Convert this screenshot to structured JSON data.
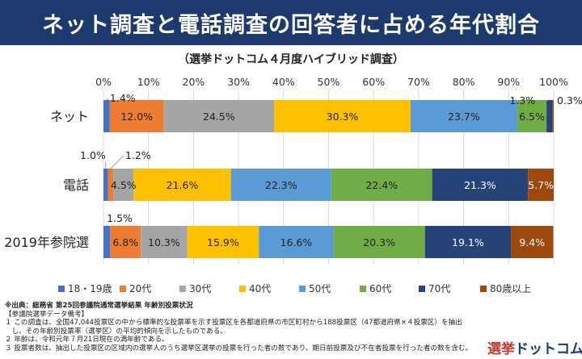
{
  "header": {
    "title": "ネット調査と電話調査の回答者に占める年代割合"
  },
  "subtitle": "（選挙ドットコム４月度ハイブリッド調査）",
  "colors": [
    "#4472c4",
    "#ed7d31",
    "#a5a5a5",
    "#ffc000",
    "#5b9bd5",
    "#70ad47",
    "#264478",
    "#9e480e"
  ],
  "chart_data": {
    "type": "bar",
    "orientation": "horizontal",
    "stacked": "percent",
    "categories": [
      "ネット",
      "電話",
      "2019年参院選"
    ],
    "xlim": [
      0,
      100
    ],
    "x_ticks": [
      "0%",
      "10%",
      "20%",
      "30%",
      "40%",
      "50%",
      "60%",
      "70%",
      "80%",
      "90%",
      "100%"
    ],
    "grid": true,
    "legend_position": "bottom",
    "series": [
      {
        "name": "18・19歳",
        "values": [
          1.4,
          1.0,
          1.5
        ],
        "labels": [
          "1.4%",
          "1.0%",
          "1.5%"
        ]
      },
      {
        "name": "20代",
        "values": [
          12.0,
          1.2,
          6.8
        ],
        "labels": [
          "12.0%",
          "1.2%",
          "6.8%"
        ]
      },
      {
        "name": "30代",
        "values": [
          24.5,
          4.5,
          10.3
        ],
        "labels": [
          "24.5%",
          "4.5%",
          "10.3%"
        ]
      },
      {
        "name": "40代",
        "values": [
          30.3,
          21.6,
          15.9
        ],
        "labels": [
          "30.3%",
          "21.6%",
          "15.9%"
        ]
      },
      {
        "name": "50代",
        "values": [
          23.7,
          22.3,
          16.6
        ],
        "labels": [
          "23.7%",
          "22.3%",
          "16.6%"
        ]
      },
      {
        "name": "60代",
        "values": [
          6.5,
          22.4,
          20.3
        ],
        "labels": [
          "6.5%",
          "22.4%",
          "20.3%"
        ]
      },
      {
        "name": "70代",
        "values": [
          1.3,
          21.3,
          19.1
        ],
        "labels": [
          "1.3%",
          "21.3%",
          "19.1%"
        ]
      },
      {
        "name": "80歳以上",
        "values": [
          0.3,
          5.7,
          9.4
        ],
        "labels": [
          "0.3%",
          "5.7%",
          "9.4%"
        ]
      }
    ]
  },
  "footnotes": {
    "source": "※出典：総務省 第25回参議院通常選挙結果 年齢別投票状況",
    "section_title": "【参議院選挙データ備考】",
    "note1": "１ この調査は、全国47,044投票区の中から標準的な投票率を示す投票区を各都道府県の市区町村から188投票区（47都道府県×４投票区）を抽出",
    "note1b": "　し、その年齢別投票率（選挙区）の平均的傾向を示したものである。",
    "note2": "２ 年齢は、令和元年７月21日現在の満年齢である。",
    "note3": "３ 投票者数は、抽出した投票区の区域内の選挙人のうち選挙区選挙の投票を行った者の数であり、期日前投票及び不在者投票を行った者の数を含む。"
  },
  "logo": {
    "part1": "選挙",
    "part2": "ドットコム"
  }
}
